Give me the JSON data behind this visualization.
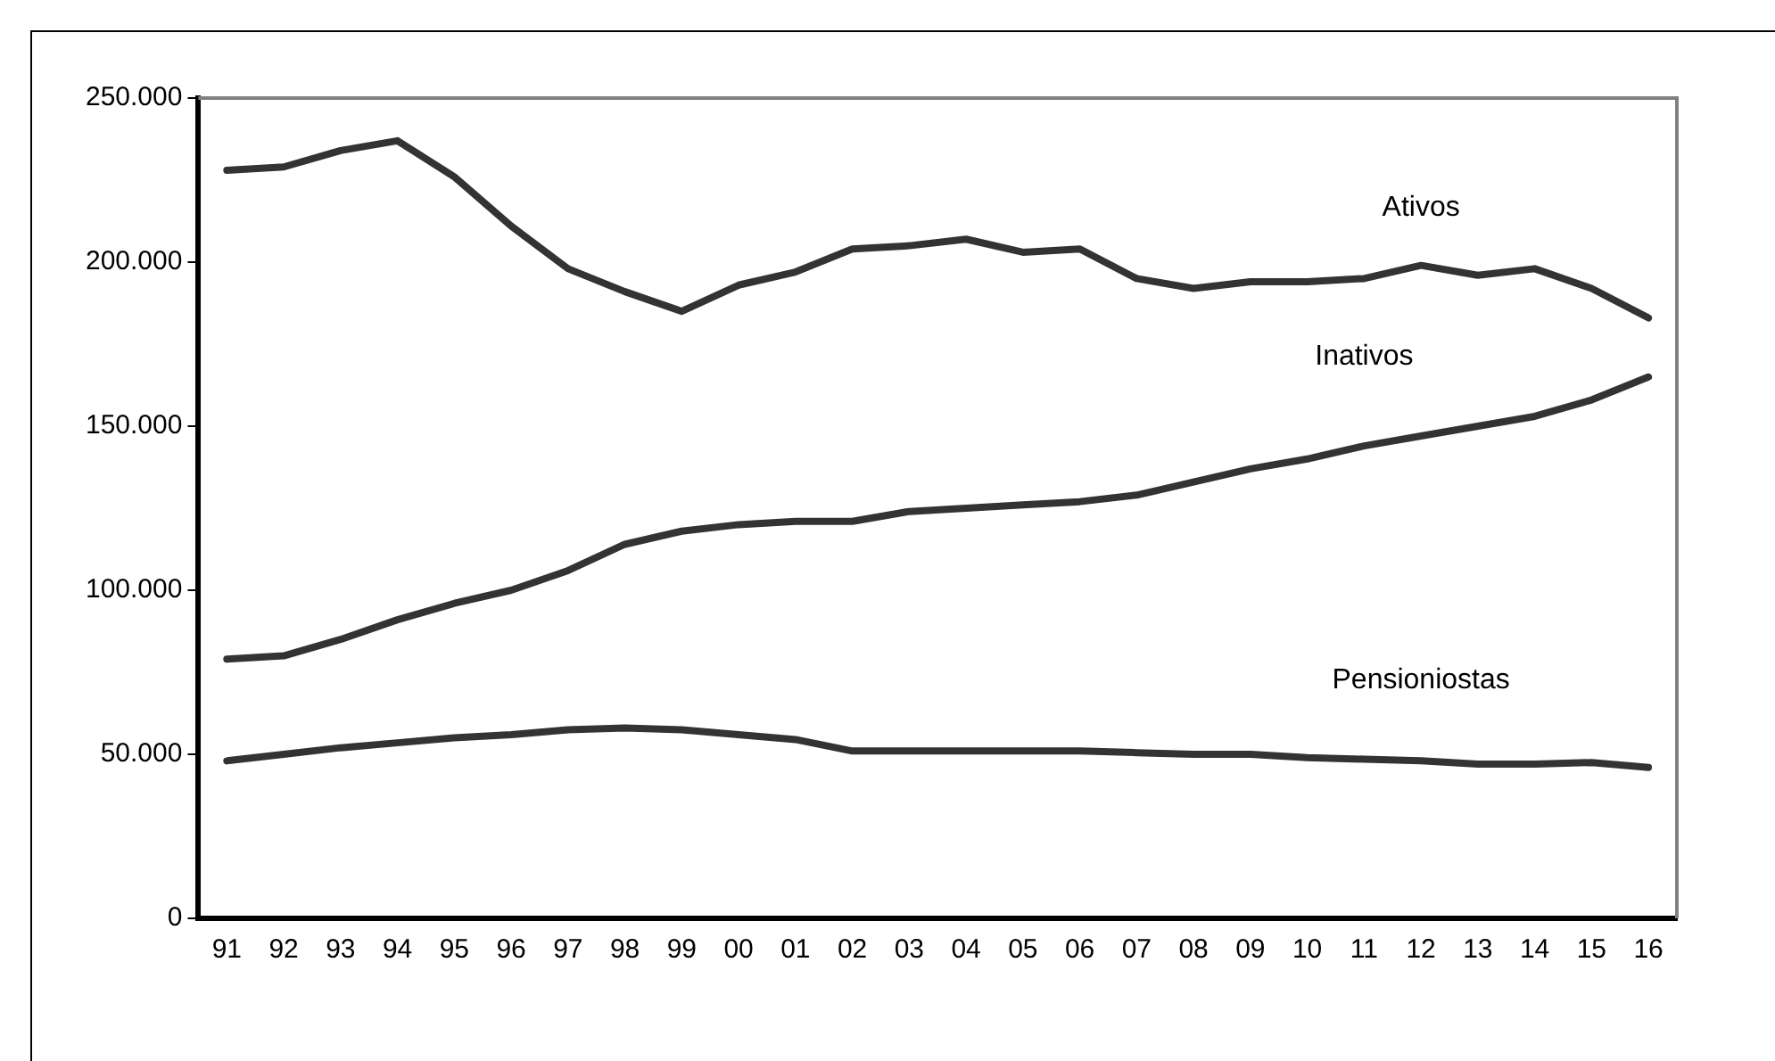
{
  "chart_data": {
    "type": "line",
    "categories": [
      "91",
      "92",
      "93",
      "94",
      "95",
      "96",
      "97",
      "98",
      "99",
      "00",
      "01",
      "02",
      "03",
      "04",
      "05",
      "06",
      "07",
      "08",
      "09",
      "10",
      "11",
      "12",
      "13",
      "14",
      "15",
      "16"
    ],
    "series": [
      {
        "name": "Ativos",
        "color": "#333333",
        "values": [
          228000,
          229000,
          234000,
          237000,
          226000,
          211000,
          198000,
          191000,
          185000,
          193000,
          197000,
          204000,
          205000,
          207000,
          203000,
          204000,
          195000,
          192000,
          194000,
          194000,
          195000,
          199000,
          196000,
          198000,
          192000,
          183000
        ]
      },
      {
        "name": "Inativos",
        "color": "#333333",
        "values": [
          79000,
          80000,
          85000,
          91000,
          96000,
          100000,
          106000,
          114000,
          118000,
          120000,
          121000,
          121000,
          124000,
          125000,
          126000,
          127000,
          129000,
          133000,
          137000,
          140000,
          144000,
          147000,
          150000,
          153000,
          158000,
          165000
        ]
      },
      {
        "name": "Pensioniostas",
        "color": "#333333",
        "values": [
          48000,
          50000,
          52000,
          53500,
          55000,
          56000,
          57500,
          58000,
          57500,
          56000,
          54500,
          51000,
          51000,
          51000,
          51000,
          51000,
          50500,
          50000,
          50000,
          49000,
          48500,
          48000,
          47000,
          47000,
          47500,
          46000
        ]
      }
    ],
    "ylim": [
      0,
      250000
    ],
    "yticks": [
      {
        "value": 0,
        "label": "0"
      },
      {
        "value": 50000,
        "label": "50.000"
      },
      {
        "value": 100000,
        "label": "100.000"
      },
      {
        "value": 150000,
        "label": "150.000"
      },
      {
        "value": 200000,
        "label": "200.000"
      },
      {
        "value": 250000,
        "label": "250.000"
      }
    ],
    "grid": false,
    "legend": false,
    "marker": "none",
    "line_style": "solid"
  }
}
